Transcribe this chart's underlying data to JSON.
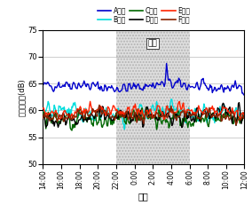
{
  "title": "",
  "xlabel": "時刻",
  "ylabel": "騒音レベル(dB)",
  "ylim": [
    50,
    75
  ],
  "yticks": [
    50,
    55,
    60,
    65,
    70,
    75
  ],
  "time_labels": [
    "14:00",
    "16:00",
    "18:00",
    "20:00",
    "22:00",
    "0:00",
    "2:00",
    "4:00",
    "6:00",
    "8:00",
    "10:00",
    "12:00"
  ],
  "night_label": "夜間",
  "night_color": "#c8c8c8",
  "night_hatch": ".....",
  "legend_entries": [
    {
      "label": "A工場",
      "color": "#0000cc",
      "lw": 1.0
    },
    {
      "label": "B工場",
      "color": "#00dddd",
      "lw": 1.0
    },
    {
      "label": "C工場",
      "color": "#006600",
      "lw": 1.0
    },
    {
      "label": "D工場",
      "color": "#000000",
      "lw": 1.0
    },
    {
      "label": "E工場",
      "color": "#ff2200",
      "lw": 1.0
    },
    {
      "label": "F工場",
      "color": "#882200",
      "lw": 1.0
    }
  ],
  "seed": 42,
  "n_points": 264,
  "A_base": 64.5,
  "B_base": 59.5,
  "C_base": 58.5,
  "D_base": 58.8,
  "E_base": 59.8,
  "F_base": 59.0
}
